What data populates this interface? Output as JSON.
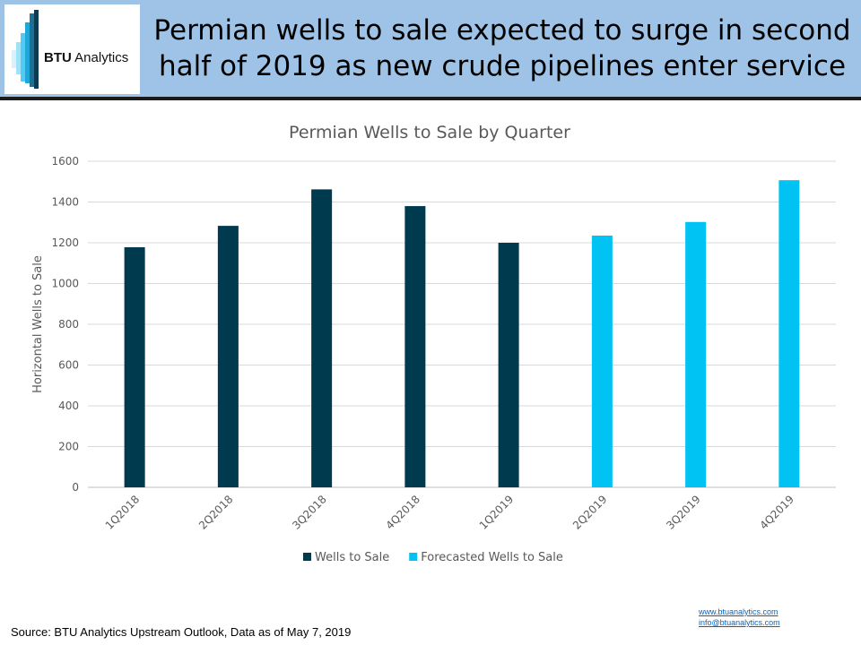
{
  "header": {
    "logo_text_bold": "BTU",
    "logo_text_rest": " Analytics",
    "headline_line1": "Permian wells to sale expected to surge in second",
    "headline_line2": "half of 2019 as new crude pipelines enter service"
  },
  "colors": {
    "header_bg": "#9ec3e6",
    "actual": "#003a4f",
    "forecast": "#00c2f3",
    "grid": "#d9d9d9"
  },
  "chart_data": {
    "type": "bar",
    "title": "Permian Wells to Sale by Quarter",
    "ylabel": "Horizontal Wells to Sale",
    "xlabel": "",
    "ylim": [
      0,
      1600
    ],
    "yticks": [
      0,
      200,
      400,
      600,
      800,
      1000,
      1200,
      1400,
      1600
    ],
    "categories": [
      "1Q2018",
      "2Q2018",
      "3Q2018",
      "4Q2018",
      "1Q2019",
      "2Q2019",
      "3Q2019",
      "4Q2019"
    ],
    "series": [
      {
        "name": "Wells to Sale",
        "color": "#003a4f",
        "values": [
          1178,
          1283,
          1462,
          1380,
          1200,
          null,
          null,
          null
        ]
      },
      {
        "name": "Forecasted Wells to Sale",
        "color": "#00c2f3",
        "values": [
          null,
          null,
          null,
          null,
          null,
          1235,
          1302,
          1507
        ]
      }
    ],
    "grid": true,
    "legend_position": "bottom"
  },
  "footer": {
    "source": "Source: BTU Analytics Upstream Outlook, Data as of May 7, 2019",
    "website": "www.btuanalytics.com",
    "email": "info@btuanalytics.com"
  }
}
